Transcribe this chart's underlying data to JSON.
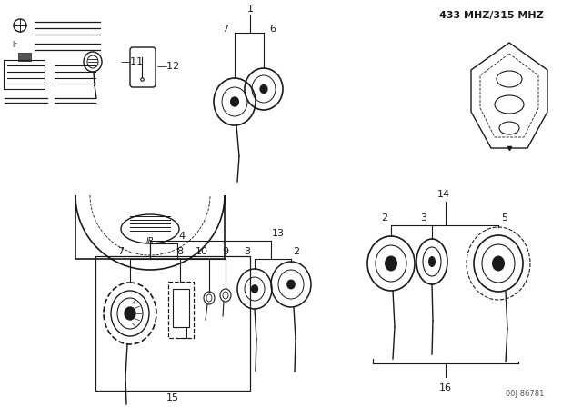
{
  "title": "433 MHZ/315 MHZ",
  "bg_color": "#ffffff",
  "line_color": "#1a1a1a",
  "diagram_note": "00J 86781",
  "fig_w": 6.4,
  "fig_h": 4.48,
  "dpi": 100
}
